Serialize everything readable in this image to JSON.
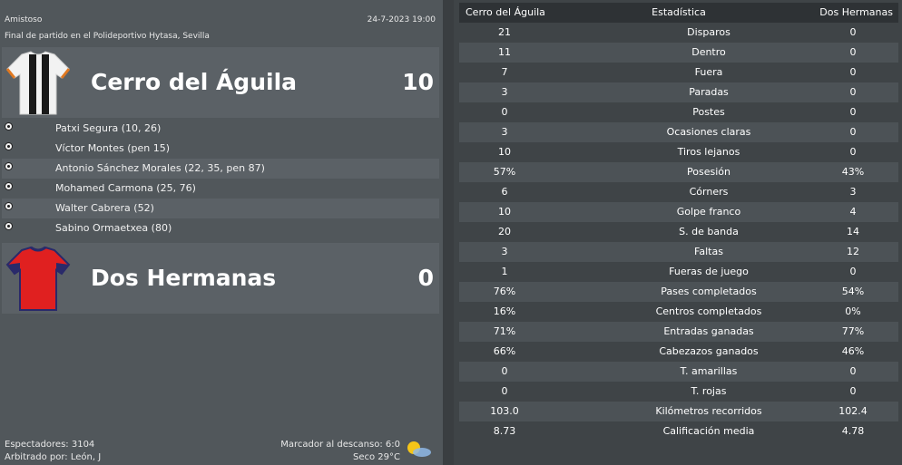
{
  "match": {
    "competition": "Amistoso",
    "datetime": "24-7-2023 19:00",
    "venue_text": "Final de partido en el Polideportivo Hytasa, Sevilla"
  },
  "home": {
    "name": "Cerro del Águila",
    "score": "10",
    "kit_colors": [
      "#1a1a1a",
      "#f2f2f2"
    ],
    "scorers": [
      "Patxi Segura (10, 26)",
      "Víctor Montes (pen 15)",
      "Antonio Sánchez Morales (22, 35, pen 87)",
      "Mohamed Carmona (25, 76)",
      "Walter Cabrera (52)",
      "Sabino Ormaetxea (80)"
    ]
  },
  "away": {
    "name": "Dos Hermanas",
    "score": "0",
    "kit_colors": [
      "#e02020",
      "#2a2a6a"
    ]
  },
  "footer": {
    "spectators": "Espectadores: 3104",
    "referee": "Arbitrado por: León, J",
    "halftime": "Marcador al descanso: 6:0",
    "weather": "Seco 29°C",
    "weather_icon": "sun-cloud-icon"
  },
  "stats": {
    "header_home": "Cerro del Águila",
    "header_label": "Estadística",
    "header_away": "Dos Hermanas",
    "rows": [
      {
        "home": "21",
        "label": "Disparos",
        "away": "0"
      },
      {
        "home": "11",
        "label": "Dentro",
        "away": "0"
      },
      {
        "home": "7",
        "label": "Fuera",
        "away": "0"
      },
      {
        "home": "3",
        "label": "Paradas",
        "away": "0"
      },
      {
        "home": "0",
        "label": "Postes",
        "away": "0"
      },
      {
        "home": "3",
        "label": "Ocasiones claras",
        "away": "0"
      },
      {
        "home": "10",
        "label": "Tiros lejanos",
        "away": "0"
      },
      {
        "home": "57%",
        "label": "Posesión",
        "away": "43%"
      },
      {
        "home": "6",
        "label": "Córners",
        "away": "3"
      },
      {
        "home": "10",
        "label": "Golpe franco",
        "away": "4"
      },
      {
        "home": "20",
        "label": "S. de banda",
        "away": "14"
      },
      {
        "home": "3",
        "label": "Faltas",
        "away": "12"
      },
      {
        "home": "1",
        "label": "Fueras de juego",
        "away": "0"
      },
      {
        "home": "76%",
        "label": "Pases completados",
        "away": "54%"
      },
      {
        "home": "16%",
        "label": "Centros completados",
        "away": "0%"
      },
      {
        "home": "71%",
        "label": "Entradas ganadas",
        "away": "77%"
      },
      {
        "home": "66%",
        "label": "Cabezazos ganados",
        "away": "46%"
      },
      {
        "home": "0",
        "label": "T. amarillas",
        "away": "0"
      },
      {
        "home": "0",
        "label": "T. rojas",
        "away": "0"
      },
      {
        "home": "103.0",
        "label": "Kilómetros recorridos",
        "away": "102.4"
      },
      {
        "home": "8.73",
        "label": "Calificación media",
        "away": "4.78"
      }
    ]
  }
}
